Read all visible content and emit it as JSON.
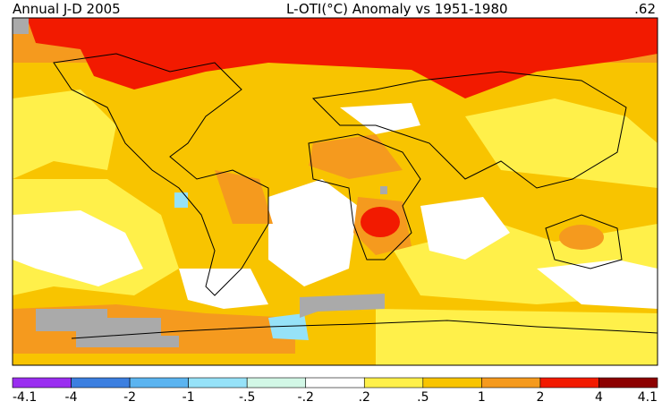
{
  "header": {
    "left": "Annual J-D 2005",
    "center": "L-OTI(°C) Anomaly vs 1951-1980",
    "right": ".62"
  },
  "legend": {
    "labels": [
      "-4.1",
      "-4",
      "-2",
      "-1",
      "-.5",
      "-.2",
      ".2",
      ".5",
      "1",
      "2",
      "4",
      "4.1"
    ],
    "colors": [
      "#9a2ef0",
      "#3c7fe0",
      "#5bb4f0",
      "#96e2f8",
      "#d2f7e6",
      "#ffffff",
      "#fff04a",
      "#f8c400",
      "#f59a1e",
      "#f21a00",
      "#8c0000"
    ]
  }
}
